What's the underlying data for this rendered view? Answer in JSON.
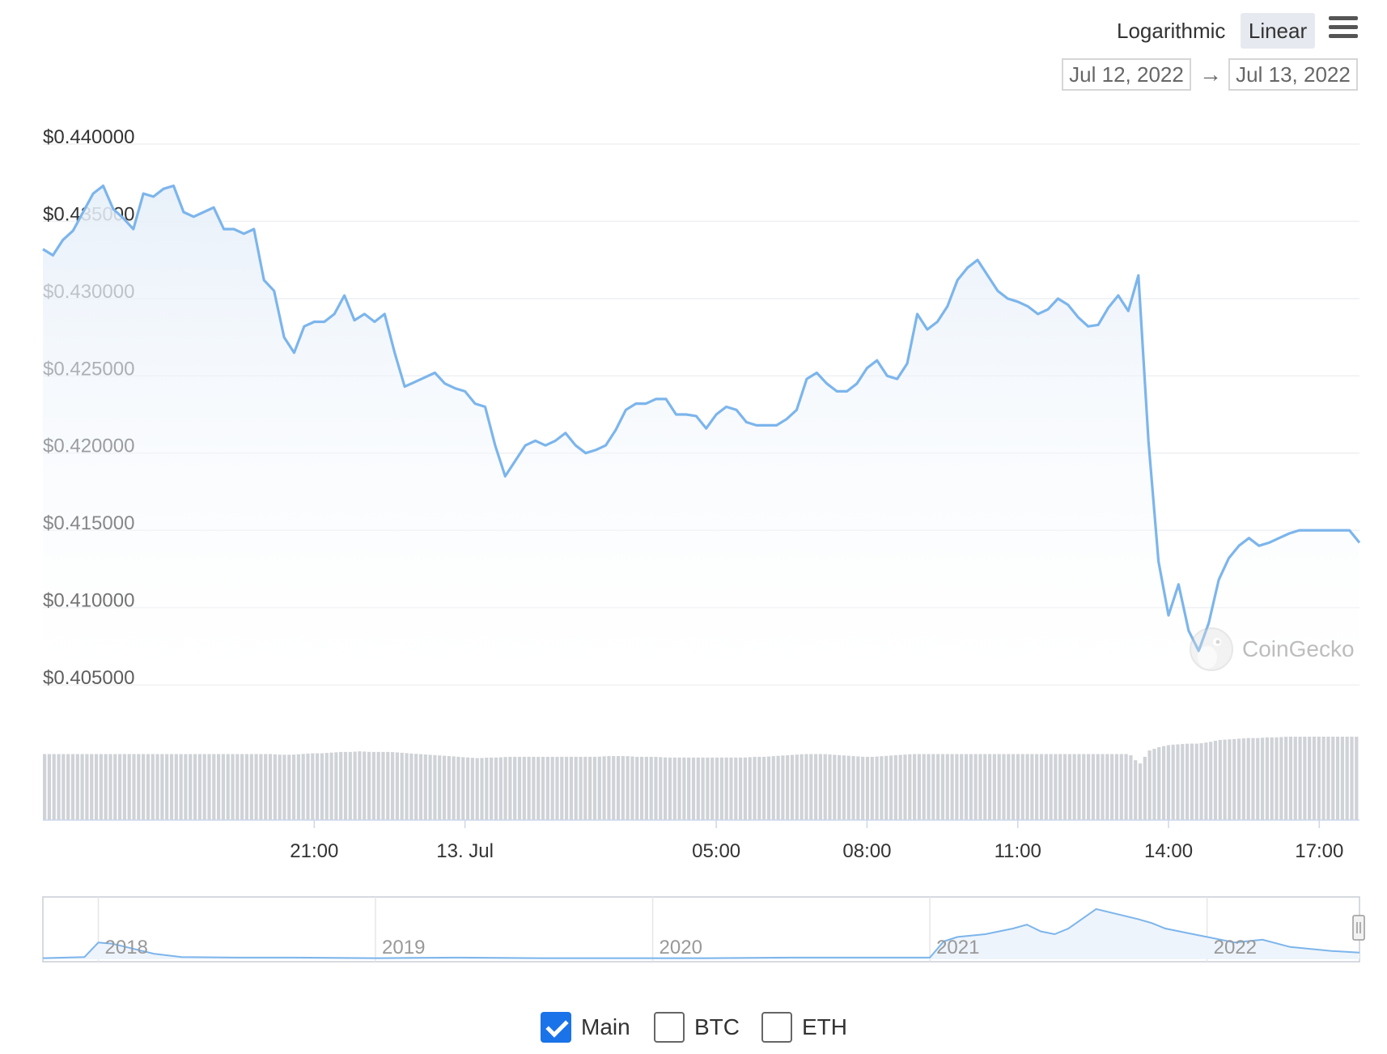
{
  "controls": {
    "logarithmic_label": "Logarithmic",
    "linear_label": "Linear",
    "date_from": "Jul 12, 2022",
    "date_to": "Jul 13, 2022",
    "arrow": "→",
    "menu_icon": "hamburger-menu-icon"
  },
  "watermark": "CoinGecko",
  "legend": {
    "items": [
      {
        "label": "Main",
        "checked": true
      },
      {
        "label": "BTC",
        "checked": false
      },
      {
        "label": "ETH",
        "checked": false
      }
    ]
  },
  "colors": {
    "line": "#7cb5ec",
    "fill_top": "#e6eff9",
    "volume": "#cfd2d6",
    "checkbox_on": "#1a73e8"
  },
  "chart_data": [
    {
      "type": "line",
      "title": "",
      "ylabel": "",
      "y_scale": "linear",
      "ylim": [
        0.405,
        0.44
      ],
      "y_ticks": [
        "$0.440000",
        "$0.435000",
        "$0.430000",
        "$0.425000",
        "$0.420000",
        "$0.415000",
        "$0.410000",
        "$0.405000"
      ],
      "y_tick_values": [
        0.44,
        0.435,
        0.43,
        0.425,
        0.42,
        0.415,
        0.41,
        0.405
      ],
      "xlim_hours": [
        15.6,
        41.8
      ],
      "x_ticks": [
        {
          "label": "21:00",
          "hour": 21
        },
        {
          "label": "13. Jul",
          "hour": 24
        },
        {
          "label": "05:00",
          "hour": 29
        },
        {
          "label": "08:00",
          "hour": 32
        },
        {
          "label": "11:00",
          "hour": 35
        },
        {
          "label": "14:00",
          "hour": 38
        },
        {
          "label": "17:00",
          "hour": 41
        }
      ],
      "grid": true,
      "legend": "bottom-center",
      "series": [
        {
          "x": [
            15.6,
            15.8,
            16.0,
            16.2,
            16.4,
            16.6,
            16.8,
            17.0,
            17.2,
            17.4,
            17.6,
            17.8,
            18.0,
            18.2,
            18.4,
            18.6,
            18.8,
            19.0,
            19.2,
            19.4,
            19.6,
            19.8,
            20.0,
            20.2,
            20.4,
            20.6,
            20.8,
            21.0,
            21.2,
            21.4,
            21.6,
            21.8,
            22.0,
            22.2,
            22.4,
            22.6,
            22.8,
            23.0,
            23.2,
            23.4,
            23.6,
            23.8,
            24.0,
            24.2,
            24.4,
            24.6,
            24.8,
            25.0,
            25.2,
            25.4,
            25.6,
            25.8,
            26.0,
            26.2,
            26.4,
            26.6,
            26.8,
            27.0,
            27.2,
            27.4,
            27.6,
            27.8,
            28.0,
            28.2,
            28.4,
            28.6,
            28.8,
            29.0,
            29.2,
            29.4,
            29.6,
            29.8,
            30.0,
            30.2,
            30.4,
            30.6,
            30.8,
            31.0,
            31.2,
            31.4,
            31.6,
            31.8,
            32.0,
            32.2,
            32.4,
            32.6,
            32.8,
            33.0,
            33.2,
            33.4,
            33.6,
            33.8,
            34.0,
            34.2,
            34.4,
            34.6,
            34.8,
            35.0,
            35.2,
            35.4,
            35.6,
            35.8,
            36.0,
            36.2,
            36.4,
            36.6,
            36.8,
            37.0,
            37.2,
            37.4,
            37.6,
            37.8,
            38.0,
            38.2,
            38.4,
            38.6,
            38.8,
            39.0,
            39.2,
            39.4,
            39.6,
            39.8,
            40.0,
            40.2,
            40.4,
            40.6,
            40.8,
            41.0,
            41.2,
            41.4,
            41.6,
            41.8
          ],
          "values": [
            0.4332,
            0.4328,
            0.4338,
            0.4344,
            0.4356,
            0.4368,
            0.4373,
            0.4358,
            0.4352,
            0.4345,
            0.4368,
            0.4366,
            0.4371,
            0.4373,
            0.4356,
            0.4353,
            0.4356,
            0.4359,
            0.4345,
            0.4345,
            0.4342,
            0.4345,
            0.4312,
            0.4305,
            0.4275,
            0.4265,
            0.4282,
            0.4285,
            0.4285,
            0.429,
            0.4302,
            0.4286,
            0.429,
            0.4285,
            0.429,
            0.4265,
            0.4243,
            0.4246,
            0.4249,
            0.4252,
            0.4245,
            0.4242,
            0.424,
            0.4232,
            0.423,
            0.4205,
            0.4185,
            0.4195,
            0.4205,
            0.4208,
            0.4205,
            0.4208,
            0.4213,
            0.4205,
            0.42,
            0.4202,
            0.4205,
            0.4215,
            0.4228,
            0.4232,
            0.4232,
            0.4235,
            0.4235,
            0.4225,
            0.4225,
            0.4224,
            0.4216,
            0.4225,
            0.423,
            0.4228,
            0.422,
            0.4218,
            0.4218,
            0.4218,
            0.4222,
            0.4228,
            0.4248,
            0.4252,
            0.4245,
            0.424,
            0.424,
            0.4245,
            0.4255,
            0.426,
            0.425,
            0.4248,
            0.4258,
            0.429,
            0.428,
            0.4285,
            0.4295,
            0.4312,
            0.432,
            0.4325,
            0.4315,
            0.4305,
            0.43,
            0.4298,
            0.4295,
            0.429,
            0.4293,
            0.43,
            0.4296,
            0.4288,
            0.4282,
            0.4283,
            0.4294,
            0.4302,
            0.4292,
            0.4315,
            0.4208,
            0.413,
            0.4095,
            0.4115,
            0.4085,
            0.4072,
            0.409,
            0.4118,
            0.4132,
            0.414,
            0.4145,
            0.414,
            0.4142,
            0.4145,
            0.4148,
            0.415,
            0.415,
            0.415,
            0.415,
            0.415,
            0.415,
            0.4142
          ]
        }
      ],
      "volume_relative": [
        0.95,
        0.95,
        0.95,
        0.95,
        0.95,
        0.95,
        0.95,
        0.95,
        0.95,
        0.95,
        0.95,
        0.95,
        0.95,
        0.95,
        0.95,
        0.95,
        0.95,
        0.95,
        0.95,
        0.95,
        0.95,
        0.95,
        0.95,
        0.95,
        0.94,
        0.94,
        0.95,
        0.96,
        0.96,
        0.97,
        0.98,
        0.98,
        0.99,
        0.98,
        0.98,
        0.98,
        0.97,
        0.96,
        0.95,
        0.94,
        0.93,
        0.92,
        0.91,
        0.9,
        0.89,
        0.9,
        0.9,
        0.91,
        0.91,
        0.91,
        0.91,
        0.91,
        0.91,
        0.91,
        0.91,
        0.91,
        0.91,
        0.92,
        0.92,
        0.92,
        0.91,
        0.91,
        0.91,
        0.9,
        0.9,
        0.9,
        0.9,
        0.9,
        0.9,
        0.9,
        0.9,
        0.9,
        0.91,
        0.91,
        0.92,
        0.93,
        0.94,
        0.95,
        0.95,
        0.95,
        0.94,
        0.93,
        0.92,
        0.91,
        0.91,
        0.92,
        0.93,
        0.94,
        0.95,
        0.95,
        0.95,
        0.95,
        0.95,
        0.95,
        0.95,
        0.95,
        0.95,
        0.95,
        0.95,
        0.95,
        0.95,
        0.95,
        0.95,
        0.95,
        0.95,
        0.95,
        0.95,
        0.95,
        0.95,
        0.95,
        0.95,
        0.8,
        1.0,
        1.05,
        1.08,
        1.09,
        1.1,
        1.1,
        1.12,
        1.15,
        1.16,
        1.17,
        1.18,
        1.18,
        1.19,
        1.19,
        1.2,
        1.2,
        1.2,
        1.2,
        1.2,
        1.2,
        1.2,
        1.2
      ]
    },
    {
      "type": "area",
      "title": "",
      "x_ticks": [
        "2018",
        "2019",
        "2020",
        "2021",
        "2022"
      ],
      "x_tick_positions_year": [
        2018,
        2019,
        2020,
        2021,
        2022
      ],
      "xlim_year": [
        2017.8,
        2022.55
      ],
      "series": [
        {
          "x": [
            2017.8,
            2017.95,
            2018.0,
            2018.05,
            2018.1,
            2018.2,
            2018.3,
            2018.5,
            2018.7,
            2019.0,
            2019.3,
            2019.6,
            2019.9,
            2020.2,
            2020.5,
            2020.8,
            2021.0,
            2021.05,
            2021.1,
            2021.2,
            2021.3,
            2021.35,
            2021.4,
            2021.45,
            2021.5,
            2021.6,
            2021.7,
            2021.75,
            2021.8,
            2021.85,
            2021.95,
            2022.0,
            2022.05,
            2022.1,
            2022.2,
            2022.3,
            2022.45,
            2022.55
          ],
          "values": [
            0.02,
            0.04,
            0.3,
            0.28,
            0.22,
            0.1,
            0.04,
            0.03,
            0.03,
            0.02,
            0.03,
            0.02,
            0.02,
            0.02,
            0.03,
            0.03,
            0.03,
            0.32,
            0.4,
            0.45,
            0.55,
            0.62,
            0.5,
            0.45,
            0.55,
            0.9,
            0.78,
            0.72,
            0.65,
            0.55,
            0.45,
            0.4,
            0.35,
            0.3,
            0.35,
            0.22,
            0.15,
            0.12
          ]
        }
      ]
    }
  ]
}
